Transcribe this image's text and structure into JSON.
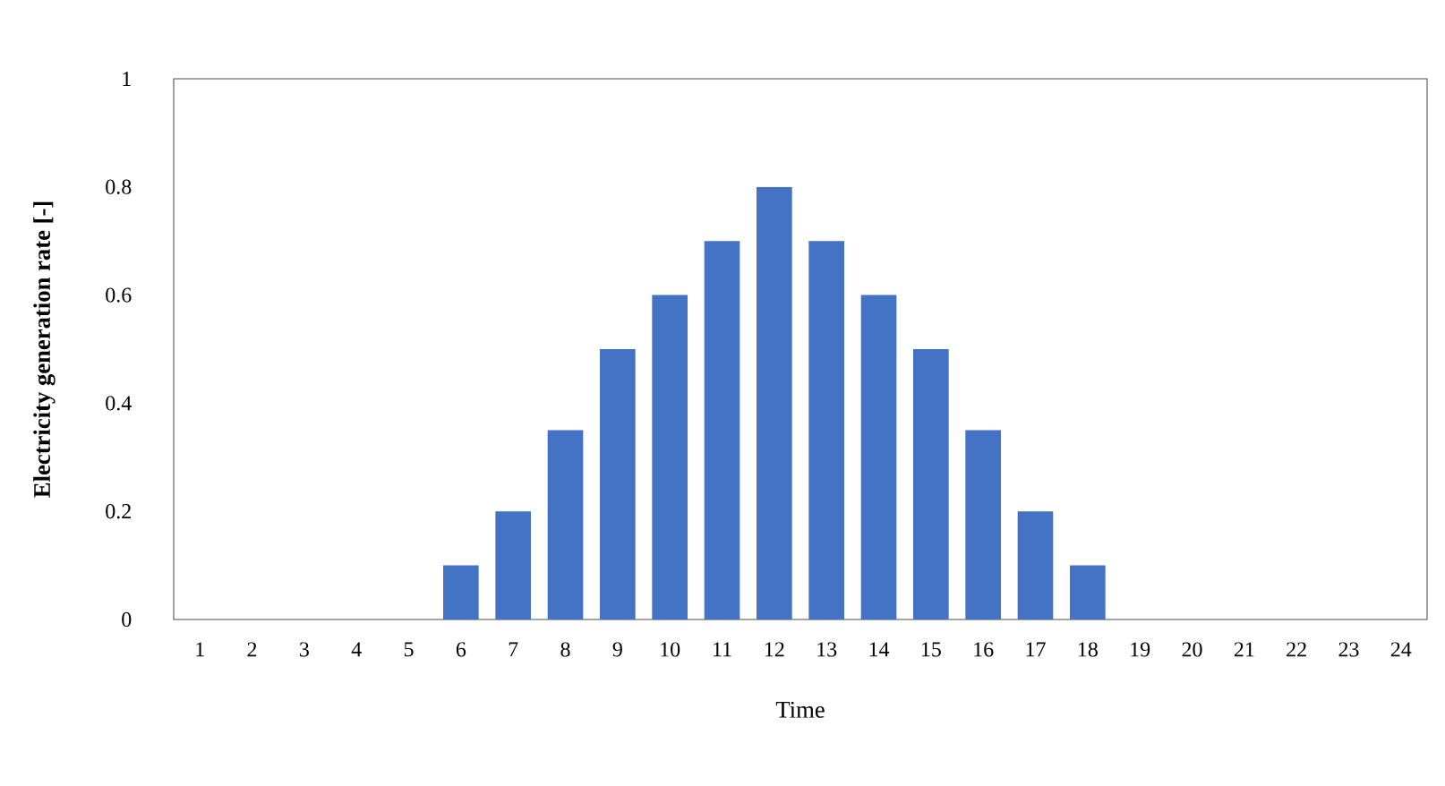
{
  "chart_data": {
    "type": "bar",
    "xlabel": "Time",
    "ylabel": "Electricity generation rate [-]",
    "categories": [
      "1",
      "2",
      "3",
      "4",
      "5",
      "6",
      "7",
      "8",
      "9",
      "10",
      "11",
      "12",
      "13",
      "14",
      "15",
      "16",
      "17",
      "18",
      "19",
      "20",
      "21",
      "22",
      "23",
      "24"
    ],
    "values": [
      0,
      0,
      0,
      0,
      0,
      0.1,
      0.2,
      0.35,
      0.5,
      0.6,
      0.7,
      0.8,
      0.7,
      0.6,
      0.5,
      0.35,
      0.2,
      0.1,
      0,
      0,
      0,
      0,
      0,
      0
    ],
    "color": "#4472c4",
    "ylim": [
      0,
      1
    ],
    "yticks": [
      0,
      0.2,
      0.4,
      0.6,
      0.8,
      1
    ]
  }
}
